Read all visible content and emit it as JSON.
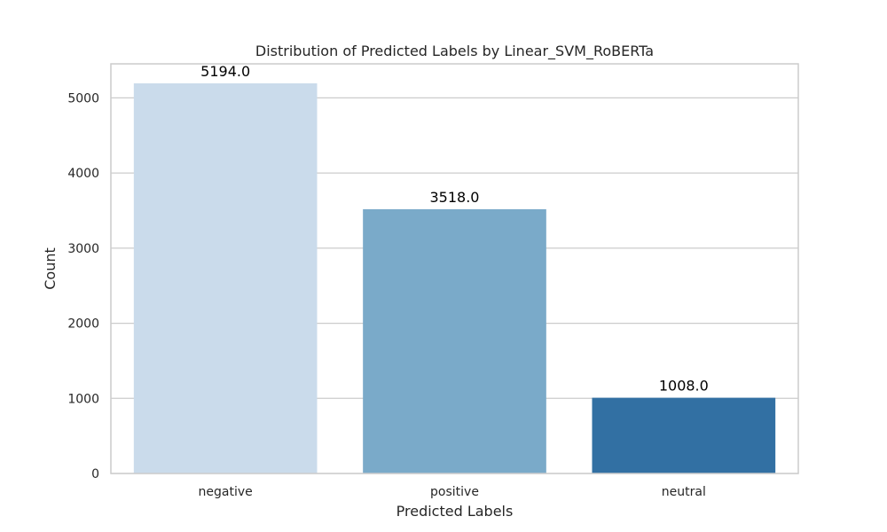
{
  "chart_data": {
    "type": "bar",
    "title": "Distribution of Predicted Labels by Linear_SVM_RoBERTa",
    "xlabel": "Predicted Labels",
    "ylabel": "Count",
    "categories": [
      "negative",
      "positive",
      "neutral"
    ],
    "values": [
      5194,
      3518,
      1008
    ],
    "data_labels": [
      "5194.0",
      "3518.0",
      "1008.0"
    ],
    "colors": [
      "#cadbeb",
      "#7aaac9",
      "#3270a3"
    ],
    "ylim": [
      0,
      5453.7
    ],
    "yticks": [
      0,
      1000,
      2000,
      3000,
      4000,
      5000
    ],
    "ytick_labels": [
      "0",
      "1000",
      "2000",
      "3000",
      "4000",
      "5000"
    ],
    "grid": true,
    "grid_axis": "y",
    "legend": "none"
  }
}
